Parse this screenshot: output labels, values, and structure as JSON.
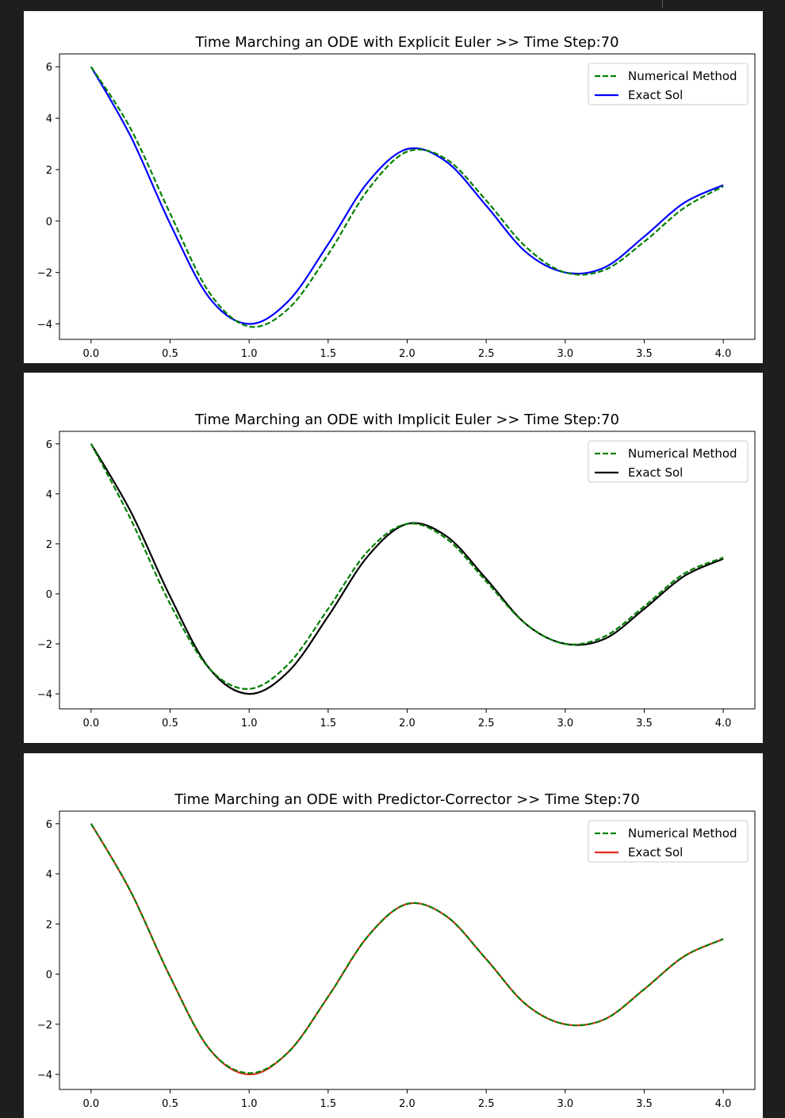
{
  "toolbar": {
    "icon": "bar-chart-icon"
  },
  "chart_data": [
    {
      "type": "line",
      "title": "Time Marching an ODE with Explicit Euler >> Time Step:70",
      "xlabel": "",
      "ylabel": "",
      "xlim": [
        -0.2,
        4.2
      ],
      "ylim": [
        -4.6,
        6.5
      ],
      "xticks": [
        "0.0",
        "0.5",
        "1.0",
        "1.5",
        "2.0",
        "2.5",
        "3.0",
        "3.5",
        "4.0"
      ],
      "yticks": [
        "−4",
        "−2",
        "0",
        "2",
        "4",
        "6"
      ],
      "legend_position": "top-right",
      "exact_color": "#0000ff",
      "numerical_color": "#008000",
      "series": [
        {
          "name": "Numerical Method",
          "style": "dashed",
          "x": [
            0,
            0.25,
            0.5,
            0.75,
            1.0,
            1.25,
            1.5,
            1.75,
            2.0,
            2.25,
            2.5,
            2.75,
            3.0,
            3.25,
            3.5,
            3.75,
            4.0
          ],
          "y": [
            6.0,
            3.6,
            0.3,
            -2.8,
            -4.1,
            -3.4,
            -1.3,
            1.2,
            2.7,
            2.4,
            0.8,
            -1.0,
            -2.0,
            -1.9,
            -0.8,
            0.5,
            1.35
          ]
        },
        {
          "name": "Exact Sol",
          "style": "solid",
          "x": [
            0,
            0.25,
            0.5,
            0.75,
            1.0,
            1.25,
            1.5,
            1.75,
            2.0,
            2.25,
            2.5,
            2.75,
            3.0,
            3.25,
            3.5,
            3.75,
            4.0
          ],
          "y": [
            6.0,
            3.3,
            -0.1,
            -3.0,
            -4.0,
            -3.1,
            -0.9,
            1.5,
            2.8,
            2.3,
            0.6,
            -1.2,
            -2.0,
            -1.8,
            -0.6,
            0.7,
            1.4
          ]
        }
      ]
    },
    {
      "type": "line",
      "title": "Time Marching an ODE with Implicit Euler >> Time Step:70",
      "xlabel": "",
      "ylabel": "",
      "xlim": [
        -0.2,
        4.2
      ],
      "ylim": [
        -4.6,
        6.5
      ],
      "xticks": [
        "0.0",
        "0.5",
        "1.0",
        "1.5",
        "2.0",
        "2.5",
        "3.0",
        "3.5",
        "4.0"
      ],
      "yticks": [
        "−4",
        "−2",
        "0",
        "2",
        "4",
        "6"
      ],
      "legend_position": "top-right",
      "exact_color": "#000000",
      "numerical_color": "#008000",
      "series": [
        {
          "name": "Numerical Method",
          "style": "dashed",
          "x": [
            0,
            0.25,
            0.5,
            0.75,
            1.0,
            1.25,
            1.5,
            1.75,
            2.0,
            2.25,
            2.5,
            2.75,
            3.0,
            3.25,
            3.5,
            3.75,
            4.0
          ],
          "y": [
            6.0,
            3.0,
            -0.4,
            -3.0,
            -3.8,
            -2.8,
            -0.6,
            1.7,
            2.8,
            2.2,
            0.5,
            -1.2,
            -2.0,
            -1.7,
            -0.5,
            0.8,
            1.45
          ]
        },
        {
          "name": "Exact Sol",
          "style": "solid",
          "x": [
            0,
            0.25,
            0.5,
            0.75,
            1.0,
            1.25,
            1.5,
            1.75,
            2.0,
            2.25,
            2.5,
            2.75,
            3.0,
            3.25,
            3.5,
            3.75,
            4.0
          ],
          "y": [
            6.0,
            3.3,
            -0.1,
            -3.0,
            -4.0,
            -3.1,
            -0.9,
            1.5,
            2.8,
            2.3,
            0.6,
            -1.2,
            -2.0,
            -1.8,
            -0.6,
            0.7,
            1.4
          ]
        }
      ]
    },
    {
      "type": "line",
      "title": "Time Marching an ODE with Predictor-Corrector >> Time Step:70",
      "xlabel": "",
      "ylabel": "",
      "xlim": [
        -0.2,
        4.2
      ],
      "ylim": [
        -4.6,
        6.5
      ],
      "xticks": [
        "0.0",
        "0.5",
        "1.0",
        "1.5",
        "2.0",
        "2.5",
        "3.0",
        "3.5",
        "4.0"
      ],
      "yticks": [
        "−4",
        "−2",
        "0",
        "2",
        "4",
        "6"
      ],
      "legend_position": "top-right",
      "exact_color": "#e8291c",
      "numerical_color": "#008000",
      "series": [
        {
          "name": "Numerical Method",
          "style": "dashed",
          "x": [
            0,
            0.25,
            0.5,
            0.75,
            1.0,
            1.25,
            1.5,
            1.75,
            2.0,
            2.25,
            2.5,
            2.75,
            3.0,
            3.25,
            3.5,
            3.75,
            4.0
          ],
          "y": [
            6.0,
            3.3,
            -0.1,
            -3.0,
            -3.95,
            -3.1,
            -0.9,
            1.5,
            2.8,
            2.3,
            0.6,
            -1.2,
            -2.0,
            -1.8,
            -0.6,
            0.7,
            1.4
          ]
        },
        {
          "name": "Exact Sol",
          "style": "solid",
          "x": [
            0,
            0.25,
            0.5,
            0.75,
            1.0,
            1.25,
            1.5,
            1.75,
            2.0,
            2.25,
            2.5,
            2.75,
            3.0,
            3.25,
            3.5,
            3.75,
            4.0
          ],
          "y": [
            6.0,
            3.3,
            -0.1,
            -3.0,
            -4.0,
            -3.1,
            -0.9,
            1.5,
            2.8,
            2.3,
            0.6,
            -1.2,
            -2.0,
            -1.8,
            -0.6,
            0.7,
            1.4
          ]
        }
      ]
    }
  ]
}
